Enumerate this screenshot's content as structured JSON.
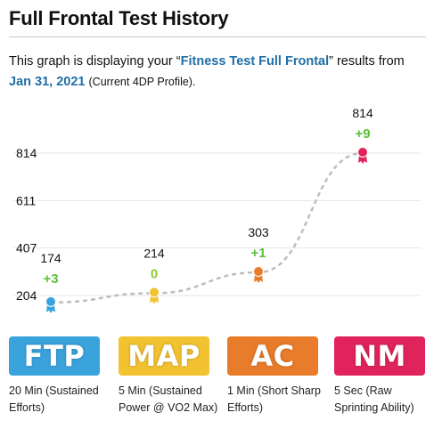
{
  "header": {
    "title": "Full Frontal Test History"
  },
  "description": {
    "prefix": "This graph is displaying your “",
    "test_name": "Fitness Test Full Frontal",
    "middle": "” results from",
    "date": "Jan 31, 2021",
    "profile_note": "(Current 4DP Profile)."
  },
  "chart_data": {
    "type": "line",
    "y_ticks": [
      "814",
      "611",
      "407",
      "204"
    ],
    "ylim": [
      204,
      814
    ],
    "grid": true,
    "line_style": "dashed",
    "points": [
      {
        "metric": "FTP",
        "value": 174,
        "value_label": "174",
        "change": "+3",
        "change_color": "#5cc23a",
        "marker_color": "#3aa3dc"
      },
      {
        "metric": "MAP",
        "value": 214,
        "value_label": "214",
        "change": "0",
        "change_color": "#8dcc2e",
        "marker_color": "#f2c230"
      },
      {
        "metric": "AC",
        "value": 303,
        "value_label": "303",
        "change": "+1",
        "change_color": "#5cc23a",
        "marker_color": "#e97c2a"
      },
      {
        "metric": "NM",
        "value": 814,
        "value_label": "814",
        "change": "+9",
        "change_color": "#5cc23a",
        "marker_color": "#e0235a"
      }
    ]
  },
  "metrics": [
    {
      "label": "FTP",
      "color": "#3aa3dc",
      "description": "20 Min (Sustained Efforts)"
    },
    {
      "label": "MAP",
      "color": "#f2c230",
      "description": "5 Min (Sustained Power @ VO2 Max)"
    },
    {
      "label": "AC",
      "color": "#e97c2a",
      "description": "1 Min (Short Sharp Efforts)"
    },
    {
      "label": "NM",
      "color": "#e0235a",
      "description": "5 Sec (Raw Sprinting Ability)"
    }
  ]
}
